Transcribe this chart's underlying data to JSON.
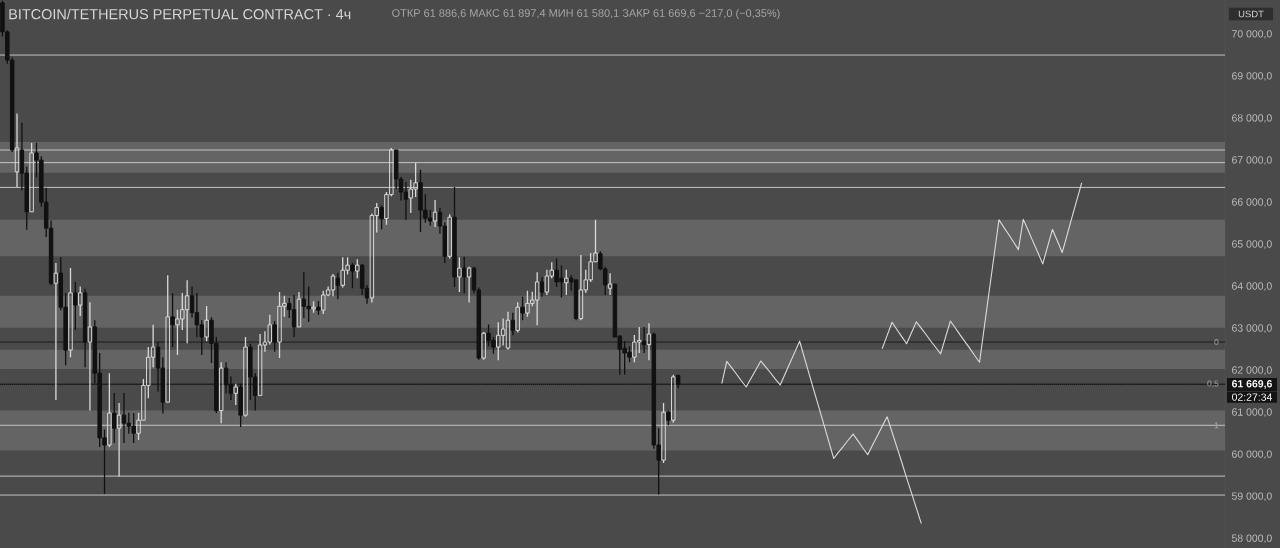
{
  "chart_data": {
    "type": "candlestick",
    "title": "BITCOIN/TETHERUS PERPETUAL CONTRACT · 4ч",
    "ylabel": "USDT",
    "annotations": [
      "ОТКР 61 886,6 МАКС 61 897,4 МИН 61 580,1 ЗАКР 61 669,6 −217,0 (−0,35%)",
      "02:27:34",
      {
        "text": "0",
        "y": 62680
      },
      {
        "text": "0,5",
        "y": 61680
      },
      {
        "text": "1",
        "y": 60700
      }
    ],
    "categories": [
      null,
      null,
      null,
      null,
      null,
      null,
      null,
      null,
      null,
      null,
      null,
      null,
      null,
      null,
      null,
      null,
      null,
      null,
      null,
      null,
      null,
      null,
      null,
      null,
      null,
      null,
      null,
      null,
      null,
      null,
      null,
      null,
      null,
      null,
      null,
      null,
      null,
      null,
      null,
      null,
      null,
      null,
      null,
      null,
      null,
      null,
      null,
      null,
      null,
      null,
      null,
      null,
      null,
      null,
      null,
      null,
      null,
      null,
      null,
      null,
      null,
      null,
      null,
      null,
      null,
      null,
      null,
      null,
      null,
      null,
      null,
      null,
      null,
      null,
      null,
      null,
      null,
      null,
      null,
      null,
      null,
      null,
      null,
      null,
      null,
      null,
      null,
      null,
      null,
      null,
      null,
      null,
      null,
      null,
      null,
      null,
      null,
      null,
      null,
      null,
      null,
      null,
      null,
      null,
      null,
      null,
      null,
      null,
      null,
      null,
      null,
      null,
      null,
      null,
      null,
      null,
      null,
      null,
      null,
      null,
      null,
      null,
      null,
      null,
      null,
      null,
      null,
      null,
      null,
      null,
      null,
      null,
      null,
      null,
      null,
      null,
      null,
      null,
      null,
      null,
      null,
      null,
      null,
      null,
      null,
      null,
      null,
      null,
      null,
      null,
      null,
      null,
      null,
      null,
      null,
      null,
      null,
      null,
      null,
      null,
      null,
      null,
      null,
      null,
      null,
      null,
      null,
      null,
      null,
      null,
      null,
      null,
      null,
      null,
      null,
      null,
      null,
      null,
      null,
      null,
      null,
      null,
      null,
      null,
      null,
      null,
      null,
      null,
      null,
      null,
      null,
      null,
      null,
      null,
      null,
      null,
      null,
      null,
      null,
      null,
      null,
      null,
      null,
      null,
      null,
      null,
      null,
      null,
      null,
      null,
      null,
      null,
      null,
      null,
      null,
      null,
      null,
      null,
      null,
      null,
      null,
      null,
      null,
      null,
      null,
      null,
      null,
      null,
      null,
      null,
      null,
      null,
      null,
      null,
      null,
      null,
      null,
      null,
      null,
      null,
      null,
      null,
      null,
      null,
      null,
      null,
      null,
      null,
      null,
      null,
      null,
      null
    ],
    "ohlc": [
      [
        70750,
        70800,
        69950,
        70060
      ],
      [
        70060,
        70100,
        69300,
        69390
      ],
      [
        69390,
        69450,
        67200,
        67250
      ],
      [
        66730,
        68120,
        66370,
        67300
      ],
      [
        67250,
        67900,
        66290,
        66700
      ],
      [
        66700,
        66850,
        65350,
        65780
      ],
      [
        65780,
        67420,
        65780,
        67180
      ],
      [
        67180,
        67420,
        66600,
        67010
      ],
      [
        67010,
        67100,
        65900,
        66010
      ],
      [
        66010,
        66350,
        65180,
        65390
      ],
      [
        65390,
        65570,
        64030,
        64080
      ],
      [
        64080,
        64560,
        61300,
        64320
      ],
      [
        64320,
        64700,
        63440,
        63510
      ],
      [
        63510,
        63850,
        62130,
        62490
      ],
      [
        62490,
        64440,
        62320,
        63850
      ],
      [
        63850,
        64110,
        62970,
        63560
      ],
      [
        63560,
        64000,
        63300,
        63850
      ],
      [
        63850,
        63950,
        62080,
        62680
      ],
      [
        62680,
        63630,
        61050,
        63040
      ],
      [
        63040,
        63200,
        61700,
        61940
      ],
      [
        61940,
        62420,
        60180,
        60400
      ],
      [
        60400,
        60600,
        59070,
        60230
      ],
      [
        60230,
        61940,
        60180,
        60990
      ],
      [
        60990,
        61470,
        60280,
        60630
      ],
      [
        60630,
        61230,
        59480,
        60940
      ],
      [
        60940,
        61470,
        60280,
        60750
      ],
      [
        60750,
        61000,
        60500,
        60680
      ],
      [
        60680,
        60990,
        60280,
        60510
      ],
      [
        60510,
        60990,
        60350,
        60820
      ],
      [
        60820,
        61800,
        60820,
        61650
      ],
      [
        61650,
        62560,
        61340,
        62320
      ],
      [
        62320,
        63090,
        62080,
        62560
      ],
      [
        62560,
        62680,
        61500,
        62060
      ],
      [
        62060,
        62320,
        60980,
        61250
      ],
      [
        61250,
        64270,
        61250,
        63280
      ],
      [
        63280,
        63850,
        62560,
        63090
      ],
      [
        63090,
        63450,
        62370,
        63230
      ],
      [
        63230,
        63850,
        62970,
        63450
      ],
      [
        63450,
        64150,
        62650,
        63780
      ],
      [
        63780,
        64000,
        63260,
        63380
      ],
      [
        63380,
        63850,
        62800,
        63090
      ],
      [
        63090,
        63200,
        62370,
        62800
      ],
      [
        62800,
        63540,
        62700,
        63200
      ],
      [
        63200,
        63270,
        62180,
        62650
      ],
      [
        62650,
        62800,
        60990,
        61050
      ],
      [
        61050,
        62200,
        60750,
        62060
      ],
      [
        62060,
        62200,
        61460,
        61660
      ],
      [
        61660,
        61860,
        61300,
        61460
      ],
      [
        61460,
        61690,
        61180,
        61610
      ],
      [
        61610,
        61690,
        60660,
        60940
      ],
      [
        60940,
        62800,
        60900,
        62560
      ],
      [
        62560,
        62640,
        61300,
        61850
      ],
      [
        61850,
        61940,
        61050,
        61410
      ],
      [
        61410,
        62870,
        61410,
        62610
      ],
      [
        62610,
        62940,
        62450,
        62680
      ],
      [
        62680,
        63330,
        62620,
        63090
      ],
      [
        63090,
        63180,
        62450,
        62680
      ],
      [
        62680,
        63870,
        62300,
        63530
      ],
      [
        63530,
        63780,
        63280,
        63600
      ],
      [
        63600,
        63730,
        63250,
        63450
      ],
      [
        63450,
        63800,
        62800,
        63040
      ],
      [
        63040,
        63870,
        63040,
        63700
      ],
      [
        63700,
        64350,
        63250,
        63530
      ],
      [
        63530,
        64000,
        63160,
        63470
      ],
      [
        63470,
        63650,
        63380,
        63510
      ],
      [
        63510,
        63660,
        63330,
        63440
      ],
      [
        63440,
        63900,
        63350,
        63800
      ],
      [
        63800,
        64000,
        63770,
        63920
      ],
      [
        63920,
        64300,
        63770,
        64250
      ],
      [
        64200,
        64330,
        63700,
        64030
      ],
      [
        64030,
        64700,
        63980,
        64390
      ],
      [
        64390,
        64700,
        64290,
        64510
      ],
      [
        64510,
        64560,
        63960,
        64370
      ],
      [
        64370,
        64650,
        64200,
        64510
      ],
      [
        64510,
        64540,
        63800,
        63960
      ],
      [
        63960,
        64040,
        63590,
        63730
      ],
      [
        63730,
        65740,
        63620,
        65690
      ],
      [
        65690,
        65990,
        65290,
        65880
      ],
      [
        65880,
        65930,
        65360,
        65620
      ],
      [
        65620,
        66250,
        65470,
        66190
      ],
      [
        66190,
        67300,
        66150,
        67250
      ],
      [
        67250,
        67250,
        66320,
        66560
      ],
      [
        66560,
        66610,
        66050,
        66250
      ],
      [
        66250,
        66490,
        65590,
        66080
      ],
      [
        66110,
        66540,
        65750,
        66320
      ],
      [
        66320,
        66940,
        66130,
        66470
      ],
      [
        66470,
        66780,
        65300,
        65820
      ],
      [
        65820,
        66200,
        65520,
        65630
      ],
      [
        65630,
        65820,
        65450,
        65560
      ],
      [
        65560,
        66060,
        65420,
        65770
      ],
      [
        65770,
        65870,
        65260,
        65440
      ],
      [
        65440,
        65530,
        64560,
        64720
      ],
      [
        64720,
        65720,
        64670,
        65650
      ],
      [
        65650,
        66370,
        63990,
        64230
      ],
      [
        64230,
        64700,
        63870,
        64440
      ],
      [
        64440,
        64710,
        63840,
        64230
      ],
      [
        64230,
        64470,
        63620,
        64440
      ],
      [
        64440,
        64470,
        63840,
        63920
      ],
      [
        63920,
        63980,
        62260,
        62300
      ],
      [
        62300,
        62920,
        62260,
        62890
      ],
      [
        62890,
        63100,
        62580,
        62720
      ],
      [
        62720,
        62800,
        62400,
        62560
      ],
      [
        62560,
        63150,
        62250,
        62840
      ],
      [
        62840,
        63240,
        62600,
        62990
      ],
      [
        62540,
        63400,
        62500,
        63200
      ],
      [
        63200,
        63380,
        62840,
        62960
      ],
      [
        62960,
        63630,
        62910,
        63510
      ],
      [
        63510,
        63760,
        63200,
        63370
      ],
      [
        63370,
        63900,
        63280,
        63600
      ],
      [
        63600,
        63880,
        63530,
        63680
      ],
      [
        63680,
        64340,
        63080,
        64110
      ],
      [
        64110,
        64230,
        63760,
        63870
      ],
      [
        63870,
        64400,
        63800,
        64250
      ],
      [
        64250,
        64580,
        64200,
        64390
      ],
      [
        64390,
        64670,
        63990,
        64110
      ],
      [
        64200,
        64500,
        63740,
        64110
      ],
      [
        64090,
        64400,
        63800,
        64200
      ],
      [
        64200,
        64270,
        63900,
        64110
      ],
      [
        64160,
        64160,
        63200,
        63240
      ],
      [
        63240,
        64750,
        63200,
        63920
      ],
      [
        63920,
        64400,
        63850,
        64160
      ],
      [
        64160,
        64800,
        64110,
        64590
      ],
      [
        64590,
        65590,
        64590,
        64800
      ],
      [
        64780,
        64840,
        64390,
        64420
      ],
      [
        64420,
        64470,
        63800,
        64040
      ],
      [
        63960,
        64320,
        63800,
        64060
      ],
      [
        64060,
        64060,
        62800,
        62800
      ],
      [
        62820,
        62850,
        61900,
        62510
      ],
      [
        62530,
        62700,
        61900,
        62420
      ],
      [
        62440,
        62580,
        62200,
        62320
      ],
      [
        62320,
        62850,
        62200,
        62680
      ],
      [
        62680,
        63040,
        62420,
        62720
      ],
      [
        62700,
        63040,
        62420,
        62620
      ],
      [
        62620,
        63130,
        62250,
        62870
      ],
      [
        62870,
        62900,
        60140,
        60230
      ],
      [
        60230,
        60630,
        59050,
        59870
      ],
      [
        59870,
        61230,
        59800,
        61010
      ],
      [
        61010,
        61050,
        60700,
        60820
      ],
      [
        60820,
        61900,
        60760,
        61850
      ],
      [
        61886.6,
        61897.4,
        61580.1,
        61669.6
      ],
      null,
      null,
      null,
      null,
      null,
      null,
      null,
      null,
      null,
      null,
      null,
      null,
      null,
      null,
      null,
      null,
      null,
      null,
      null,
      null,
      null,
      null,
      null,
      null,
      null,
      null,
      null,
      null,
      null,
      null,
      null,
      null,
      null,
      null,
      null,
      null,
      null,
      null,
      null,
      null,
      null,
      null,
      null,
      null,
      null,
      null,
      null,
      null,
      null,
      null,
      null,
      null,
      null,
      null,
      null,
      null,
      null,
      null,
      null,
      null,
      null,
      null,
      null,
      null,
      null,
      null,
      null,
      null,
      null,
      null,
      null,
      null,
      null,
      null,
      null,
      null,
      null,
      null,
      null,
      null,
      null,
      null,
      null,
      null,
      null,
      null,
      null,
      null,
      null,
      null,
      null,
      null,
      null,
      null,
      null,
      null,
      null,
      null,
      null,
      null,
      null,
      null,
      null,
      null,
      null,
      null,
      null,
      null,
      null,
      null,
      null,
      null
    ],
    "colors": [
      "#111111",
      "#111111",
      "#111111",
      "#d9d9d9",
      "#111111",
      "#111111",
      "#d9d9d9",
      "#111111",
      "#111111",
      "#111111",
      "#111111",
      "#d9d9d9",
      "#111111",
      "#111111",
      "#d9d9d9",
      "#111111",
      "#d9d9d9",
      "#111111",
      "#d9d9d9",
      "#111111",
      "#111111",
      "#111111",
      "#d9d9d9",
      "#111111",
      "#d9d9d9",
      "#111111",
      "#111111",
      "#111111",
      "#d9d9d9",
      "#d9d9d9",
      "#d9d9d9",
      "#d9d9d9",
      "#111111",
      "#111111",
      "#d9d9d9",
      "#111111",
      "#d9d9d9",
      "#d9d9d9",
      "#d9d9d9",
      "#111111",
      "#111111",
      "#111111",
      "#d9d9d9",
      "#111111",
      "#111111",
      "#d9d9d9",
      "#111111",
      "#111111",
      "#d9d9d9",
      "#111111",
      "#d9d9d9",
      "#111111",
      "#111111",
      "#d9d9d9",
      "#d9d9d9",
      "#d9d9d9",
      "#111111",
      "#d9d9d9",
      "#d9d9d9",
      "#111111",
      "#111111",
      "#d9d9d9",
      "#111111",
      "#111111",
      "#d9d9d9",
      "#111111",
      "#d9d9d9",
      "#d9d9d9",
      "#d9d9d9",
      "#111111",
      "#d9d9d9",
      "#d9d9d9",
      "#111111",
      "#d9d9d9",
      "#111111",
      "#111111",
      "#d9d9d9",
      "#d9d9d9",
      "#111111",
      "#d9d9d9",
      "#d9d9d9",
      "#111111",
      "#111111",
      "#111111",
      "#d9d9d9",
      "#d9d9d9",
      "#111111",
      "#111111",
      "#111111",
      "#d9d9d9",
      "#111111",
      "#111111",
      "#d9d9d9",
      "#111111",
      "#d9d9d9",
      "#111111",
      "#d9d9d9",
      "#111111",
      "#111111",
      "#d9d9d9",
      "#111111",
      "#111111",
      "#d9d9d9",
      "#d9d9d9",
      "#d9d9d9",
      "#111111",
      "#d9d9d9",
      "#111111",
      "#d9d9d9",
      "#d9d9d9",
      "#d9d9d9",
      "#111111",
      "#d9d9d9",
      "#d9d9d9",
      "#111111",
      "#111111",
      "#d9d9d9",
      "#111111",
      "#111111",
      "#d9d9d9",
      "#d9d9d9",
      "#d9d9d9",
      "#d9d9d9",
      "#111111",
      "#111111",
      "#d9d9d9",
      "#111111",
      "#111111",
      "#111111",
      "#111111",
      "#d9d9d9",
      "#d9d9d9",
      "#111111",
      "#d9d9d9",
      "#111111",
      "#111111",
      "#d9d9d9",
      "#111111",
      "#d9d9d9",
      "#111111",
      null,
      null,
      null,
      null,
      null,
      null,
      null,
      null,
      null,
      null,
      null,
      null,
      null,
      null,
      null,
      null,
      null,
      null,
      null,
      null,
      null,
      null,
      null,
      null,
      null,
      null,
      null,
      null,
      null,
      null,
      null,
      null,
      null,
      null,
      null,
      null,
      null,
      null,
      null,
      null,
      null,
      null,
      null,
      null,
      null,
      null,
      null,
      null,
      null,
      null,
      null,
      null,
      null,
      null,
      null,
      null,
      null,
      null,
      null,
      null,
      null,
      null,
      null,
      null,
      null,
      null,
      null,
      null,
      null,
      null,
      null,
      null,
      null,
      null,
      null,
      null,
      null,
      null,
      null,
      null,
      null,
      null,
      null,
      null,
      null,
      null,
      null,
      null,
      null,
      null,
      null,
      null,
      null,
      null,
      null,
      null,
      null,
      null,
      null,
      null,
      null,
      null,
      null,
      null,
      null,
      null,
      null,
      null,
      null,
      null,
      null,
      null
    ],
    "series": [
      {
        "type": "line",
        "color": "#dcdcdc",
        "values": [
          null,
          null,
          null,
          null,
          null,
          null,
          null,
          null,
          null,
          null,
          null,
          null,
          null,
          null,
          null,
          null,
          null,
          null,
          null,
          null,
          null,
          null,
          null,
          null,
          null,
          null,
          null,
          null,
          null,
          null,
          null,
          null,
          null,
          null,
          null,
          null,
          null,
          null,
          null,
          null,
          null,
          null,
          null,
          null,
          null,
          null,
          null,
          null,
          null,
          null,
          null,
          null,
          null,
          null,
          null,
          null,
          null,
          null,
          null,
          null,
          null,
          null,
          null,
          null,
          null,
          null,
          null,
          null,
          null,
          null,
          null,
          null,
          null,
          null,
          null,
          null,
          null,
          null,
          null,
          null,
          null,
          null,
          null,
          null,
          null,
          null,
          null,
          null,
          null,
          null,
          null,
          null,
          null,
          null,
          null,
          null,
          null,
          null,
          null,
          null,
          null,
          null,
          null,
          null,
          null,
          null,
          null,
          null,
          null,
          null,
          null,
          null,
          null,
          null,
          null,
          null,
          null,
          null,
          null,
          null,
          null,
          null,
          null,
          null,
          null,
          null,
          null,
          null,
          null,
          null,
          null,
          null,
          null,
          null,
          null,
          null,
          null,
          null,
          null,
          null,
          null,
          null,
          null,
          null,
          null,
          null,
          null,
          null,
          61700,
          62220,
          62070,
          61920,
          61760,
          61610,
          61820,
          62020,
          62230,
          62090,
          61950,
          61800,
          61660,
          61920,
          62180,
          62440,
          62700,
          62300,
          61900,
          61500,
          61110,
          60710,
          60310,
          59910,
          60060,
          60200,
          60350,
          60490,
          60330,
          60160,
          60000,
          60230,
          60450,
          60680,
          60900,
          60540,
          60180,
          59820,
          59450,
          59090,
          58730,
          58370,
          null,
          null,
          null,
          null,
          null,
          null,
          null,
          null,
          null,
          null,
          null,
          null,
          null,
          null,
          null,
          null,
          null,
          null,
          null,
          null,
          null,
          null,
          null,
          null,
          null,
          null,
          null,
          null,
          null,
          null,
          null,
          null,
          null,
          null,
          null,
          null,
          null,
          null,
          null,
          null,
          null,
          null,
          null,
          null,
          null,
          null,
          null,
          null,
          null,
          null,
          null,
          null,
          null,
          null,
          null,
          null,
          null,
          null,
          null,
          null,
          null,
          null
        ]
      },
      {
        "type": "line",
        "color": "#dcdcdc",
        "values": [
          null,
          null,
          null,
          null,
          null,
          null,
          null,
          null,
          null,
          null,
          null,
          null,
          null,
          null,
          null,
          null,
          null,
          null,
          null,
          null,
          null,
          null,
          null,
          null,
          null,
          null,
          null,
          null,
          null,
          null,
          null,
          null,
          null,
          null,
          null,
          null,
          null,
          null,
          null,
          null,
          null,
          null,
          null,
          null,
          null,
          null,
          null,
          null,
          null,
          null,
          null,
          null,
          null,
          null,
          null,
          null,
          null,
          null,
          null,
          null,
          null,
          null,
          null,
          null,
          null,
          null,
          null,
          null,
          null,
          null,
          null,
          null,
          null,
          null,
          null,
          null,
          null,
          null,
          null,
          null,
          null,
          null,
          null,
          null,
          null,
          null,
          null,
          null,
          null,
          null,
          null,
          null,
          null,
          null,
          null,
          null,
          null,
          null,
          null,
          null,
          null,
          null,
          null,
          null,
          null,
          null,
          null,
          null,
          null,
          null,
          null,
          null,
          null,
          null,
          null,
          null,
          null,
          null,
          null,
          null,
          null,
          null,
          null,
          null,
          null,
          null,
          null,
          null,
          null,
          null,
          null,
          null,
          null,
          null,
          null,
          null,
          null,
          null,
          null,
          null,
          null,
          null,
          null,
          null,
          null,
          null,
          null,
          null,
          null,
          null,
          null,
          null,
          null,
          null,
          null,
          null,
          null,
          null,
          null,
          null,
          null,
          null,
          null,
          null,
          null,
          null,
          null,
          null,
          null,
          null,
          null,
          null,
          null,
          null,
          null,
          null,
          null,
          null,
          null,
          null,
          null,
          62530,
          62840,
          63150,
          62980,
          62810,
          62640,
          62900,
          63160,
          63010,
          62860,
          62700,
          62550,
          62400,
          62790,
          63180,
          63020,
          62850,
          62690,
          62530,
          62360,
          62200,
          63050,
          63900,
          64740,
          65590,
          65410,
          65240,
          65060,
          64880,
          65600,
          65340,
          65070,
          64810,
          64540,
          64950,
          65360,
          65090,
          64810,
          65220,
          65640,
          66050,
          66460,
          null,
          null,
          null,
          null,
          null,
          null,
          null,
          null,
          null,
          null,
          null,
          null,
          null,
          null,
          null,
          null,
          null,
          null,
          null,
          null,
          null,
          null,
          null,
          null,
          null,
          null,
          null,
          null,
          null
        ]
      }
    ],
    "bands": [
      {
        "axis": "y",
        "from": 66710,
        "to": 67440,
        "color": "#646464"
      },
      {
        "axis": "y",
        "from": 64720,
        "to": 65590,
        "color": "#646464"
      },
      {
        "axis": "y",
        "from": 63020,
        "to": 63780,
        "color": "#646464"
      },
      {
        "axis": "y",
        "from": 62040,
        "to": 62500,
        "color": "#646464"
      },
      {
        "axis": "y",
        "from": 60100,
        "to": 61050,
        "color": "#646464"
      }
    ],
    "ref_lines": [
      {
        "axis": "y",
        "value": 69510,
        "color": "#c4c4c4"
      },
      {
        "axis": "y",
        "value": 67250,
        "color": "#c4c4c4"
      },
      {
        "axis": "y",
        "value": 66950,
        "color": "#c4c4c4"
      },
      {
        "axis": "y",
        "value": 66360,
        "color": "#c4c4c4"
      },
      {
        "axis": "y",
        "value": 62680,
        "color": "#1c1c1c"
      },
      {
        "axis": "y",
        "value": 61680,
        "color": "#1c1c1c"
      },
      {
        "axis": "y",
        "value": 60700,
        "color": "#c4c4c4"
      },
      {
        "axis": "y",
        "value": 59490,
        "color": "#c4c4c4"
      },
      {
        "axis": "y",
        "value": 59040,
        "color": "#c4c4c4"
      },
      {
        "axis": "y",
        "value": 61669.6,
        "label": "61 669,6",
        "color": "#141414",
        "line_style": "dotted"
      }
    ],
    "ylim": [
      57780,
      70820
    ],
    "yticks": [
      {
        "value": 58000,
        "label": "58 000,0"
      },
      {
        "value": 59000,
        "label": "59 000,0"
      },
      {
        "value": 60000,
        "label": "60 000,0"
      },
      {
        "value": 61000,
        "label": "61 000,0"
      },
      {
        "value": 62000,
        "label": "62 000,0"
      },
      {
        "value": 63000,
        "label": "63 000,0"
      },
      {
        "value": 64000,
        "label": "64 000,0"
      },
      {
        "value": 65000,
        "label": "65 000,0"
      },
      {
        "value": 66000,
        "label": "66 000,0"
      },
      {
        "value": 67000,
        "label": "67 000,0"
      },
      {
        "value": 68000,
        "label": "68 000,0"
      },
      {
        "value": 69000,
        "label": "69 000,0"
      },
      {
        "value": 70000,
        "label": "70 000,0"
      }
    ],
    "tick_labels": "y"
  }
}
